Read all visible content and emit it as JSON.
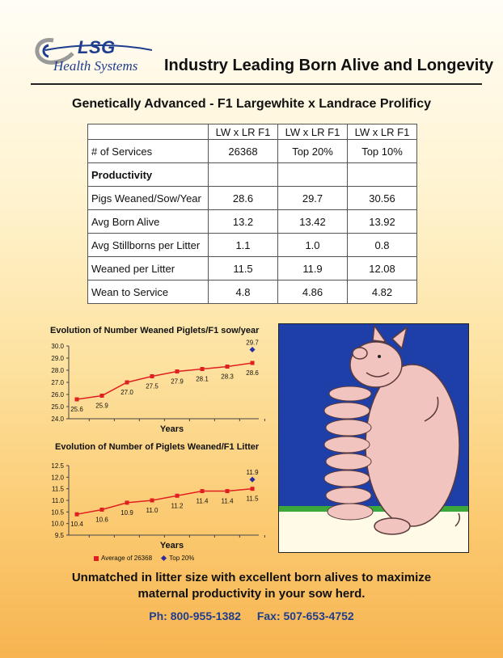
{
  "header": {
    "logo_lsg": "LSG",
    "logo_sub": "Health Systems",
    "title": "Industry Leading Born Alive and Longevity"
  },
  "subtitle": "Genetically Advanced - F1 Largewhite x Landrace Prolificy",
  "table": {
    "columns": [
      "LW x LR F1",
      "LW x LR F1",
      "LW x LR F1"
    ],
    "rows": [
      {
        "label": "# of Services",
        "values": [
          "26368",
          "Top 20%",
          "Top 10%"
        ]
      },
      {
        "label": "Productivity",
        "values": [
          "",
          "",
          ""
        ]
      },
      {
        "label": "Pigs Weaned/Sow/Year",
        "values": [
          "28.6",
          "29.7",
          "30.56"
        ]
      },
      {
        "label": "Avg Born Alive",
        "values": [
          "13.2",
          "13.42",
          "13.92"
        ]
      },
      {
        "label": "Avg Stillborns per Litter",
        "values": [
          "1.1",
          "1.0",
          "0.8"
        ]
      },
      {
        "label": "Weaned per Litter",
        "values": [
          "11.5",
          "11.9",
          "12.08"
        ]
      },
      {
        "label": "Wean to Service",
        "values": [
          "4.8",
          "4.86",
          "4.82"
        ]
      }
    ]
  },
  "chart_data": [
    {
      "type": "line",
      "title": "Evolution of Number Weaned Piglets/F1 sow/year",
      "xlabel": "Years",
      "ylabel": "",
      "ylim": [
        24.0,
        30.0
      ],
      "yticks": [
        "30.0",
        "29.0",
        "28.0",
        "27.0",
        "26.0",
        "25.0",
        "24.0"
      ],
      "series": [
        {
          "name": "Average of 26368",
          "values": [
            25.6,
            25.9,
            27.0,
            27.5,
            27.9,
            28.1,
            28.3,
            28.6
          ],
          "labels": [
            "25.6",
            "25.9",
            "27.0",
            "27.5",
            "27.9",
            "28.1",
            "28.3",
            "28.6"
          ],
          "color": "#e02020"
        },
        {
          "name": "Top 20%",
          "point_index": 7,
          "value": 29.7,
          "label": "29.7",
          "color": "#2a2aa0"
        }
      ]
    },
    {
      "type": "line",
      "title": "Evolution of Number of Piglets Weaned/F1 Litter",
      "xlabel": "Years",
      "ylabel": "",
      "ylim": [
        9.5,
        12.5
      ],
      "yticks": [
        "12.5",
        "12.0",
        "11.5",
        "11.0",
        "10.5",
        "10.0",
        "9.5"
      ],
      "series": [
        {
          "name": "Average of 26368",
          "values": [
            10.4,
            10.6,
            10.9,
            11.0,
            11.2,
            11.4,
            11.4,
            11.5
          ],
          "labels": [
            "10.4",
            "10.6",
            "10.9",
            "11.0",
            "11.2",
            "11.4",
            "11.4",
            "11.5"
          ],
          "color": "#e02020"
        },
        {
          "name": "Top 20%",
          "point_index": 7,
          "value": 11.9,
          "label": "11.9",
          "color": "#2a2aa0"
        }
      ]
    }
  ],
  "legend": {
    "avg": "Average of 26368",
    "top": "Top 20%"
  },
  "footer": {
    "line1": "Unmatched in litter size with excellent born alives to maximize",
    "line2": "maternal productivity in your sow herd.",
    "phone": "Ph: 800-955-1382",
    "fax": "Fax: 507-653-4752"
  }
}
